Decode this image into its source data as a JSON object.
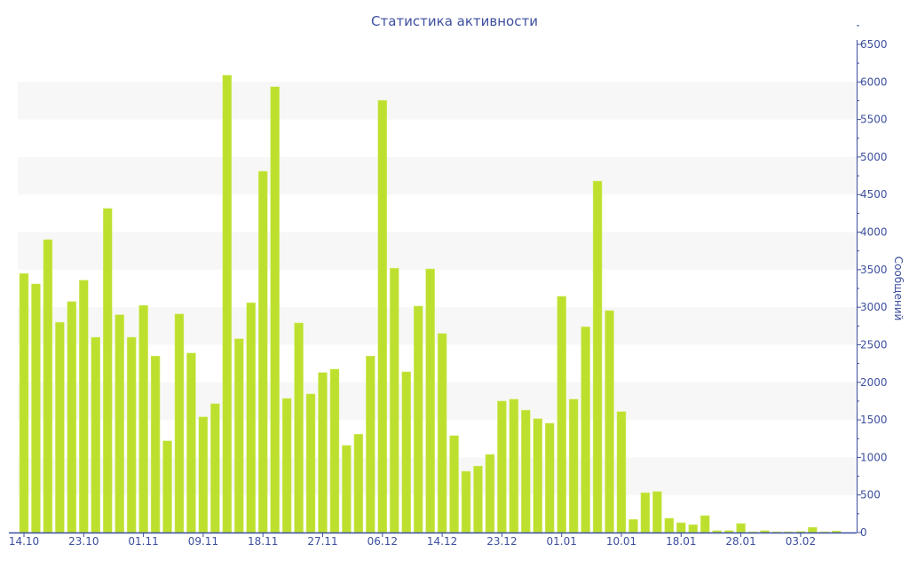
{
  "chart_data": {
    "type": "bar",
    "title": "Статистика активности",
    "xlabel": "",
    "ylabel": "Сообщений",
    "ylim": [
      0,
      6500
    ],
    "yticks": [
      0,
      500,
      1000,
      1500,
      2000,
      2500,
      3000,
      3500,
      4000,
      4500,
      5000,
      5500,
      6000,
      6500
    ],
    "y_axis_position": "right",
    "grid": "alternating horizontal bands",
    "legend": "none",
    "bar_color": "#bde02f",
    "axis_color": "#3d4f9e",
    "xtick_labels": [
      {
        "index": 0,
        "label": "14.10"
      },
      {
        "index": 5,
        "label": "23.10"
      },
      {
        "index": 10,
        "label": "01.11"
      },
      {
        "index": 15,
        "label": "09.11"
      },
      {
        "index": 20,
        "label": "18.11"
      },
      {
        "index": 25,
        "label": "27.11"
      },
      {
        "index": 30,
        "label": "06.12"
      },
      {
        "index": 35,
        "label": "14.12"
      },
      {
        "index": 40,
        "label": "23.12"
      },
      {
        "index": 45,
        "label": "01.01"
      },
      {
        "index": 50,
        "label": "10.01"
      },
      {
        "index": 55,
        "label": "18.01"
      },
      {
        "index": 60,
        "label": "28.01"
      },
      {
        "index": 65,
        "label": "03.02"
      }
    ],
    "values": [
      3450,
      3310,
      3900,
      2800,
      3075,
      3360,
      2600,
      4315,
      2900,
      2600,
      3025,
      2350,
      1220,
      2910,
      2390,
      1540,
      1715,
      6090,
      2580,
      3060,
      4810,
      5935,
      1785,
      2790,
      1845,
      2130,
      2175,
      1160,
      1310,
      2350,
      5755,
      3520,
      2140,
      3015,
      3510,
      2650,
      1290,
      815,
      885,
      1040,
      1750,
      1775,
      1630,
      1515,
      1455,
      3145,
      1775,
      2740,
      4680,
      2955,
      1610,
      175,
      530,
      545,
      190,
      130,
      105,
      225,
      25,
      25,
      120,
      10,
      25,
      10,
      10,
      15,
      70,
      10,
      20
    ]
  }
}
